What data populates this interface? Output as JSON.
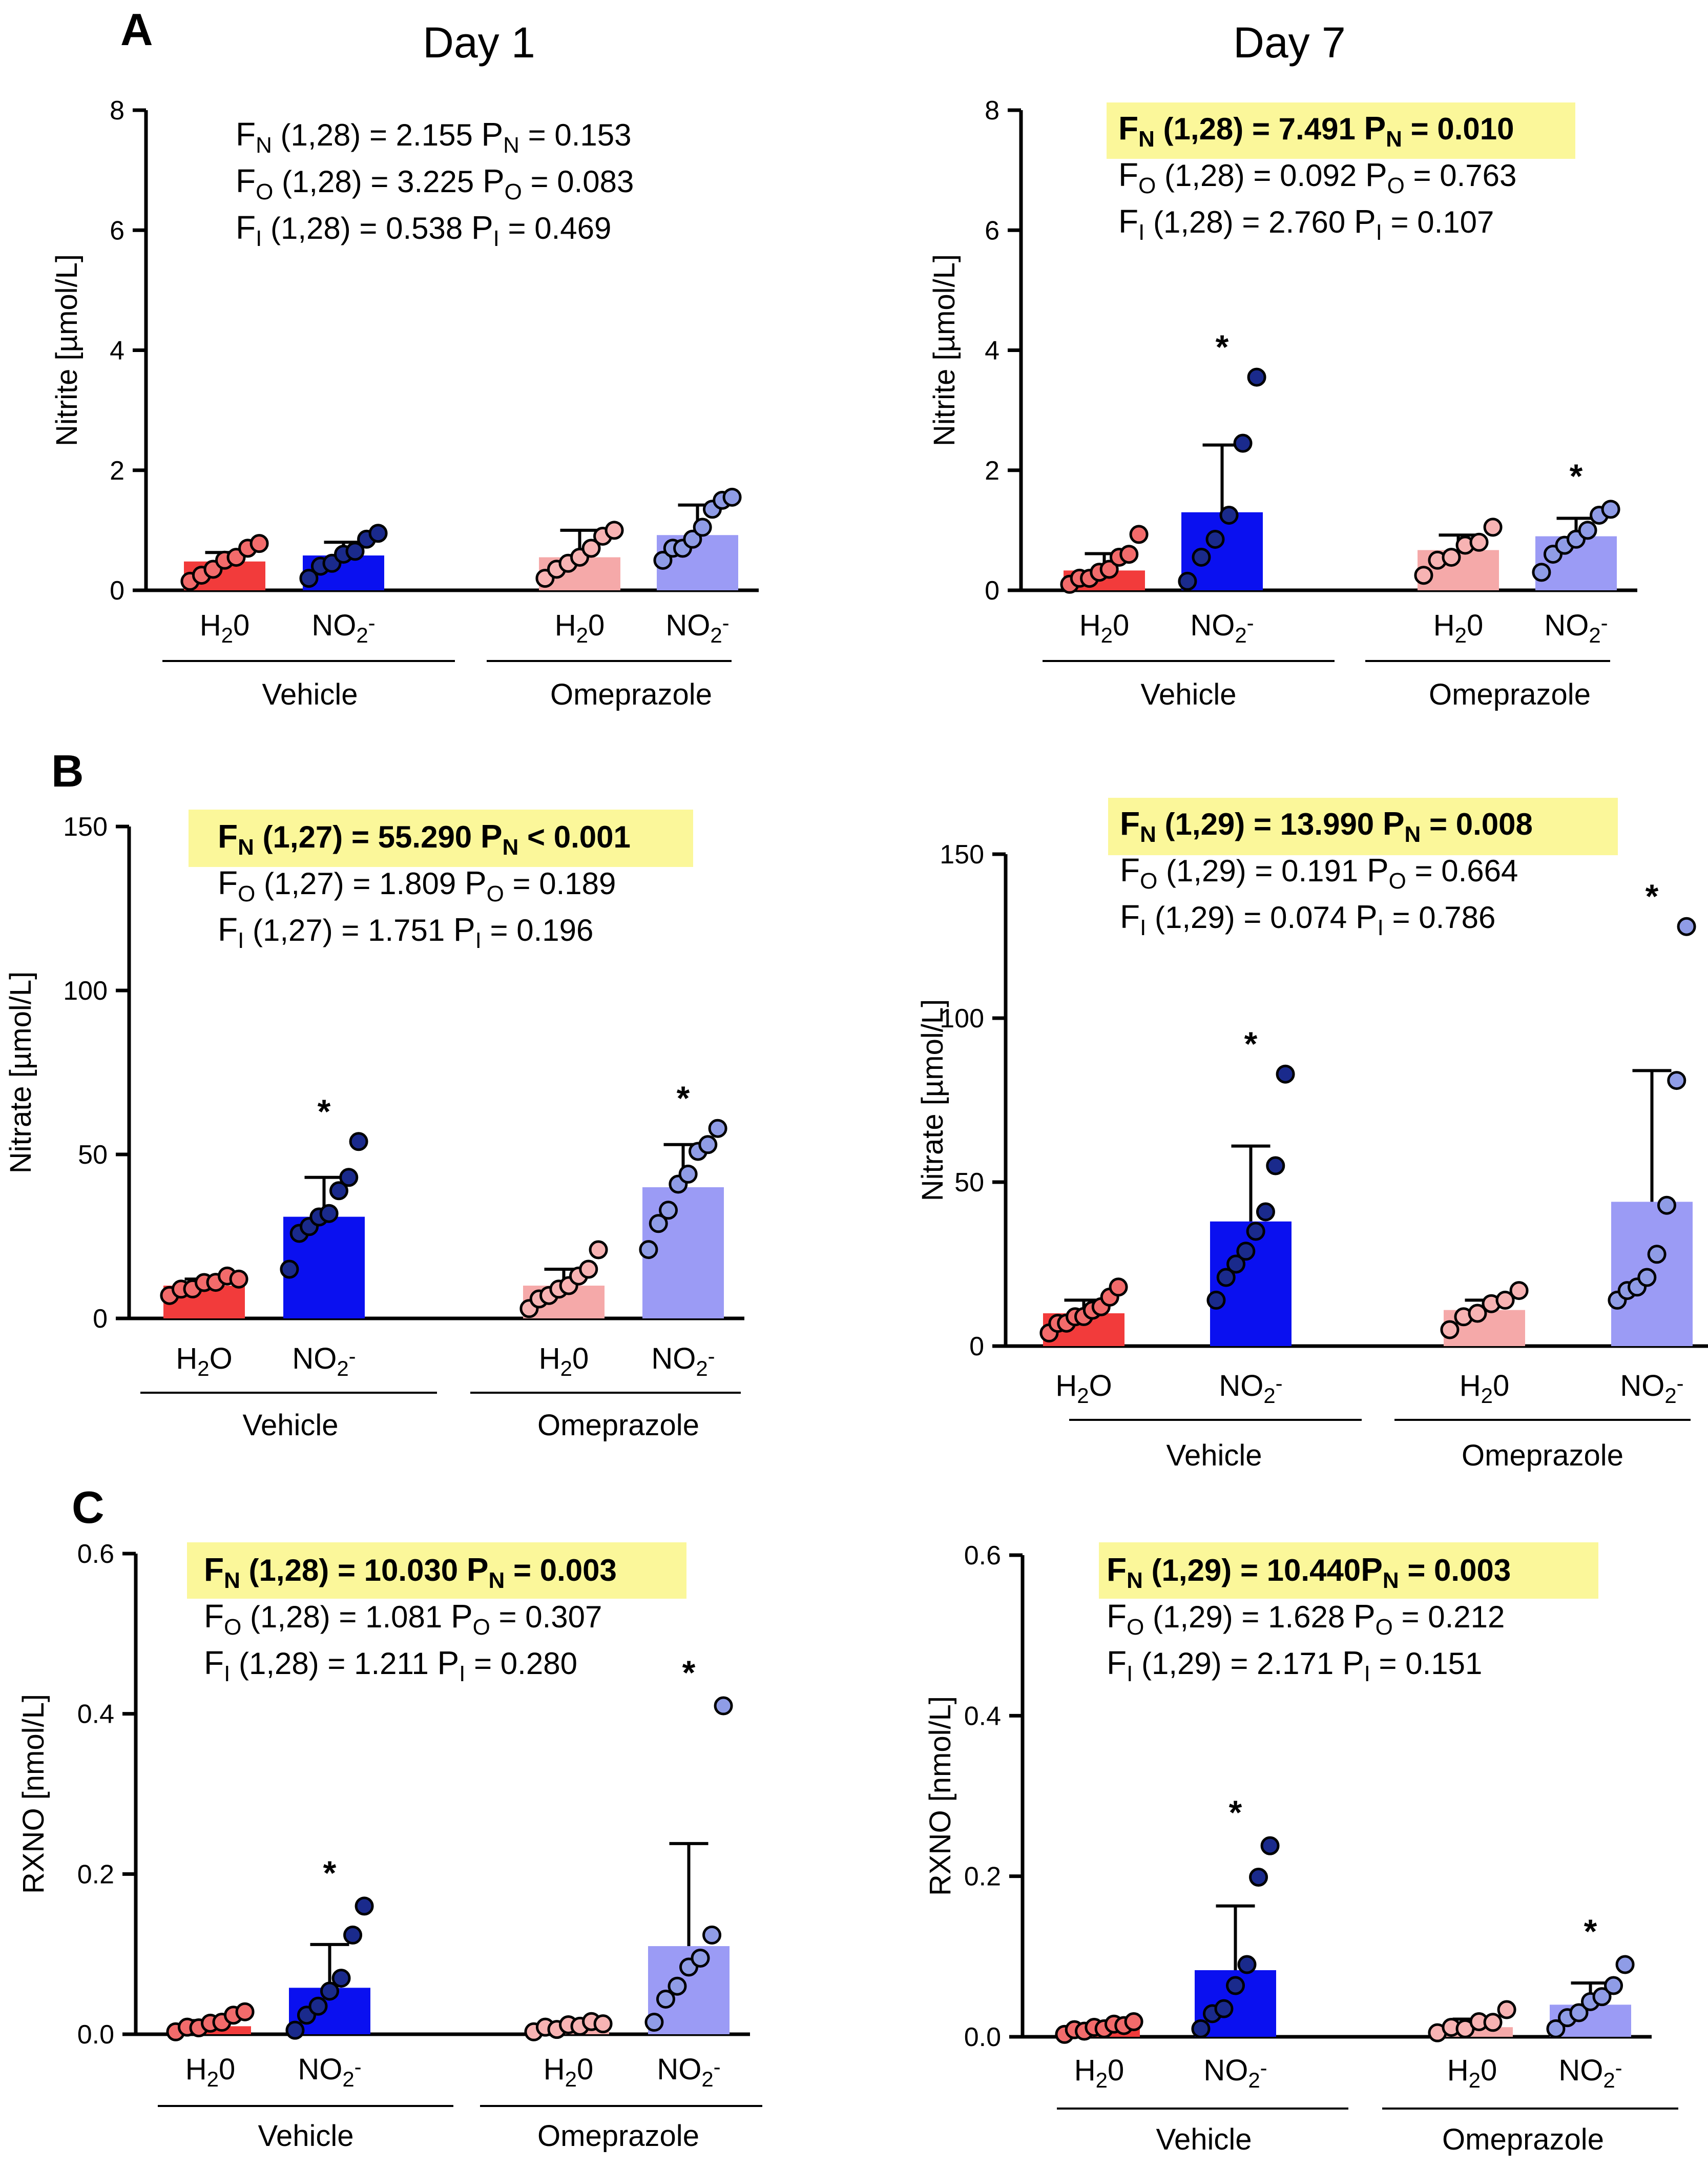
{
  "figure": {
    "col_titles": [
      "Day 1",
      "Day 7"
    ],
    "panel_letters": [
      "A",
      "B",
      "C"
    ]
  },
  "colors": {
    "veh_h2o": "#f23b3b",
    "veh_no2": "#0a10f0",
    "ome_h2o": "#f5a9a9",
    "ome_no2": "#9b9bf5",
    "dot_veh_h2o": "#f26b6b",
    "dot_veh_no2": "#1a2a8c",
    "dot_ome_h2o": "#f7b3b3",
    "dot_ome_no2": "#8f9ce6",
    "highlight": "#fbf79a"
  },
  "chart_data": [
    {
      "id": "A-day1",
      "type": "bar",
      "ylabel": "Nitrite [µmol/L]",
      "ylim": [
        0,
        8
      ],
      "yticks": [
        "0",
        "2",
        "4",
        "6",
        "8"
      ],
      "ytick_values": [
        0,
        2,
        4,
        6,
        8
      ],
      "categories": [
        "H20",
        "NO2-",
        "H20",
        "NO2-"
      ],
      "category_labels": [
        [
          "H",
          "2",
          "0",
          ""
        ],
        [
          "NO",
          "2",
          "",
          "-"
        ],
        [
          "H",
          "2",
          "0",
          ""
        ],
        [
          "NO",
          "2",
          "",
          "-"
        ]
      ],
      "groups": [
        "Vehicle",
        "Omeprazole"
      ],
      "means": [
        0.48,
        0.58,
        0.55,
        0.92
      ],
      "errors": [
        0.15,
        0.22,
        0.45,
        0.5
      ],
      "points": [
        [
          0.15,
          0.2,
          0.35,
          0.45,
          0.55,
          0.65,
          0.78
        ],
        [
          0.2,
          0.35,
          0.45,
          0.55,
          0.65,
          0.8,
          0.95
        ],
        [
          0.2,
          0.3,
          0.45,
          0.5,
          0.7,
          0.85,
          1.0
        ],
        [
          0.5,
          0.65,
          0.7,
          0.8,
          1.05,
          1.3,
          1.5,
          1.5
        ]
      ],
      "sig": [
        "",
        "",
        "",
        ""
      ],
      "stats": [
        {
          "sym": "F",
          "sub": "N",
          "df": " (1,28) = 2.155  ",
          "p_sub": "N",
          "p_val": " = 0.153",
          "bold": false
        },
        {
          "sym": "F",
          "sub": "O",
          "df": " (1,28) = 3.225  ",
          "p_sub": "O",
          "p_val": " = 0.083",
          "bold": false
        },
        {
          "sym": "F",
          "sub": "I",
          "df": "  (1,28)  = 0.538  ",
          "p_sub": "I",
          "p_val": "  = 0.469",
          "bold": false
        }
      ]
    },
    {
      "id": "A-day7",
      "type": "bar",
      "ylabel": "Nitrite [µmol/L]",
      "ylim": [
        0,
        8
      ],
      "yticks": [
        "0",
        "2",
        "4",
        "6",
        "8"
      ],
      "ytick_values": [
        0,
        2,
        4,
        6,
        8
      ],
      "categories": [
        "H20",
        "NO2-",
        "H20",
        "NO2-"
      ],
      "category_labels": [
        [
          "H",
          "2",
          "0",
          ""
        ],
        [
          "NO",
          "2",
          "",
          "-"
        ],
        [
          "H",
          "2",
          "0",
          ""
        ],
        [
          "NO",
          "2",
          "",
          "-"
        ]
      ],
      "groups": [
        "Vehicle",
        "Omeprazole"
      ],
      "means": [
        0.33,
        1.3,
        0.67,
        0.9
      ],
      "errors": [
        0.28,
        1.12,
        0.25,
        0.3
      ],
      "points": [
        [
          0.1,
          0.15,
          0.2,
          0.25,
          0.35,
          0.5,
          0.6,
          0.88
        ],
        [
          0.15,
          0.5,
          0.85,
          1.2,
          2.45,
          3.5
        ],
        [
          0.25,
          0.45,
          0.55,
          0.7,
          0.8,
          1.0
        ],
        [
          0.3,
          0.55,
          0.75,
          0.8,
          1.0,
          1.2,
          1.35
        ]
      ],
      "sig": [
        "",
        "*",
        "",
        "*"
      ],
      "stats": [
        {
          "sym": "F",
          "sub": "N",
          "df": " (1,28) = 7.491  ",
          "p_sub": "N",
          "p_val": " = 0.010",
          "bold": true
        },
        {
          "sym": "F",
          "sub": "O",
          "df": " (1,28) = 0.092  ",
          "p_sub": "O",
          "p_val": " = 0.763",
          "bold": false
        },
        {
          "sym": "F",
          "sub": "I",
          "df": "  (1,28)  = 2.760  ",
          "p_sub": "I",
          "p_val": "  = 0.107",
          "bold": false
        }
      ]
    },
    {
      "id": "B-day1",
      "type": "bar",
      "ylabel": "Nitrate [µmol/L]",
      "ylim": [
        0,
        150
      ],
      "yticks": [
        "0",
        "50",
        "100",
        "150"
      ],
      "ytick_values": [
        0,
        50,
        100,
        150
      ],
      "categories": [
        "H2O",
        "NO2-",
        "H20",
        "NO2-"
      ],
      "category_labels": [
        [
          "H",
          "2",
          "O",
          ""
        ],
        [
          "NO",
          "2",
          "",
          "-"
        ],
        [
          "H",
          "2",
          "0",
          ""
        ],
        [
          "NO",
          "2",
          "",
          "-"
        ]
      ],
      "groups": [
        "Vehicle",
        "Omeprazole"
      ],
      "means": [
        10,
        31,
        10,
        40
      ],
      "errors": [
        2,
        12,
        5,
        13
      ],
      "points": [
        [
          7,
          8,
          9,
          10,
          11,
          12,
          12
        ],
        [
          15,
          25,
          28,
          30,
          32,
          38,
          43,
          53
        ],
        [
          3,
          5,
          7,
          8,
          10,
          12,
          15,
          20
        ],
        [
          21,
          28,
          33,
          40,
          44,
          50,
          53,
          57
        ]
      ],
      "sig": [
        "",
        "*",
        "",
        "*"
      ],
      "stats": [
        {
          "sym": "F",
          "sub": "N",
          "df": " (1,27) = 55.290 ",
          "p_sub": "N",
          "p_val": " < 0.001",
          "bold": true
        },
        {
          "sym": "F",
          "sub": "O",
          "df": " (1,27) = 1.809   ",
          "p_sub": "O",
          "p_val": " = 0.189",
          "bold": false
        },
        {
          "sym": "F",
          "sub": "I",
          "df": "  (1,27)  =  1.751  ",
          "p_sub": "I",
          "p_val": "  = 0.196",
          "bold": false
        }
      ]
    },
    {
      "id": "B-day7",
      "type": "bar",
      "ylabel": "Nitrate [µmol/L]",
      "ylim": [
        0,
        150
      ],
      "yticks": [
        "0",
        "50",
        "100",
        "150"
      ],
      "ytick_values": [
        0,
        50,
        100,
        150
      ],
      "categories": [
        "H2O",
        "NO2-",
        "H20",
        "NO2-"
      ],
      "category_labels": [
        [
          "H",
          "2",
          "O",
          ""
        ],
        [
          "NO",
          "2",
          "",
          "-"
        ],
        [
          "H",
          "2",
          "0",
          ""
        ],
        [
          "NO",
          "2",
          "",
          "-"
        ]
      ],
      "groups": [
        "Vehicle",
        "Omeprazole"
      ],
      "means": [
        10,
        38,
        11,
        44
      ],
      "errors": [
        4,
        23,
        3,
        40
      ],
      "points": [
        [
          4,
          6,
          7,
          8,
          9,
          10,
          12,
          14,
          18
        ],
        [
          14,
          20,
          25,
          28,
          35,
          40,
          55,
          82
        ],
        [
          5,
          8,
          10,
          12,
          14,
          16
        ],
        [
          14,
          16,
          18,
          20,
          28,
          42,
          81,
          127
        ]
      ],
      "sig": [
        "",
        "*",
        "",
        "*"
      ],
      "stats": [
        {
          "sym": "F",
          "sub": "N",
          "df": " (1,29) = 13.990 ",
          "p_sub": "N",
          "p_val": " = 0.008",
          "bold": true
        },
        {
          "sym": "F",
          "sub": "O",
          "df": " (1,29) = 0.191   ",
          "p_sub": "O",
          "p_val": " = 0.664",
          "bold": false
        },
        {
          "sym": "F",
          "sub": "I",
          "df": "  (1,29)  =  0.074  ",
          "p_sub": "I",
          "p_val": "  = 0.786",
          "bold": false
        }
      ]
    },
    {
      "id": "C-day1",
      "type": "bar",
      "ylabel": "RXNO [nmol/L]",
      "ylim": [
        0,
        0.6
      ],
      "yticks": [
        "0.0",
        "0.2",
        "0.4",
        "0.6"
      ],
      "ytick_values": [
        0,
        0.2,
        0.4,
        0.6
      ],
      "categories": [
        "H20",
        "NO2-",
        "H20",
        "NO2-"
      ],
      "category_labels": [
        [
          "H",
          "2",
          "0",
          ""
        ],
        [
          "NO",
          "2",
          "",
          "-"
        ],
        [
          "H",
          "2",
          "0",
          ""
        ],
        [
          "NO",
          "2",
          "",
          "-"
        ]
      ],
      "groups": [
        "Vehicle",
        "Omeprazole"
      ],
      "means": [
        0.01,
        0.058,
        0.008,
        0.11
      ],
      "errors": [
        0.007,
        0.054,
        0.003,
        0.128
      ],
      "points": [
        [
          0.003,
          0.005,
          0.008,
          0.01,
          0.015,
          0.02,
          0.028
        ],
        [
          0.005,
          0.02,
          0.035,
          0.05,
          0.07,
          0.12,
          0.16
        ],
        [
          0.003,
          0.005,
          0.006,
          0.008,
          0.01,
          0.012,
          0.013
        ],
        [
          0.015,
          0.04,
          0.06,
          0.08,
          0.095,
          0.12,
          0.41
        ]
      ],
      "sig": [
        "",
        "*",
        "",
        "*"
      ],
      "stats": [
        {
          "sym": "F",
          "sub": "N",
          "df": " (1,28) = 10.030 ",
          "p_sub": "N",
          "p_val": " = 0.003",
          "bold": true
        },
        {
          "sym": "F",
          "sub": "O",
          "df": " (1,28) = 1.081   ",
          "p_sub": "O",
          "p_val": " = 0.307",
          "bold": false
        },
        {
          "sym": "F",
          "sub": "I",
          "df": "  (1,28)  = 1.211    ",
          "p_sub": "I",
          "p_val": "  = 0.280",
          "bold": false
        }
      ]
    },
    {
      "id": "C-day7",
      "type": "bar",
      "ylabel": "RXNO [nmol/L]",
      "ylim": [
        0,
        0.6
      ],
      "yticks": [
        "0.0",
        "0.2",
        "0.4",
        "0.6"
      ],
      "ytick_values": [
        0,
        0.2,
        0.4,
        0.6
      ],
      "categories": [
        "H20",
        "NO2-",
        "H20",
        "NO2-"
      ],
      "category_labels": [
        [
          "H",
          "2",
          "0",
          ""
        ],
        [
          "NO",
          "2",
          "",
          "-"
        ],
        [
          "H",
          "2",
          "0",
          ""
        ],
        [
          "NO",
          "2",
          "",
          "-"
        ]
      ],
      "groups": [
        "Vehicle",
        "Omeprazole"
      ],
      "means": [
        0.01,
        0.083,
        0.012,
        0.04
      ],
      "errors": [
        0.005,
        0.08,
        0.01,
        0.027
      ],
      "points": [
        [
          0.003,
          0.005,
          0.007,
          0.008,
          0.01,
          0.012,
          0.014,
          0.015
        ],
        [
          0.01,
          0.025,
          0.035,
          0.06,
          0.09,
          0.195,
          0.238
        ],
        [
          0.005,
          0.008,
          0.01,
          0.015,
          0.018,
          0.03
        ],
        [
          0.01,
          0.02,
          0.03,
          0.04,
          0.05,
          0.06,
          0.09
        ]
      ],
      "sig": [
        "",
        "*",
        "",
        "*"
      ],
      "stats": [
        {
          "sym": "F",
          "sub": "N",
          "df": " (1,29) = 10.440",
          "p_sub": "N",
          "p_val": " = 0.003",
          "bold": true
        },
        {
          "sym": "F",
          "sub": "O",
          "df": " (1,29) = 1.628  ",
          "p_sub": "O",
          "p_val": " = 0.212",
          "bold": false
        },
        {
          "sym": "F",
          "sub": "I",
          "df": "  (1,29)  = 2.171  ",
          "p_sub": "I",
          "p_val": "  = 0.151",
          "bold": false
        }
      ]
    }
  ]
}
